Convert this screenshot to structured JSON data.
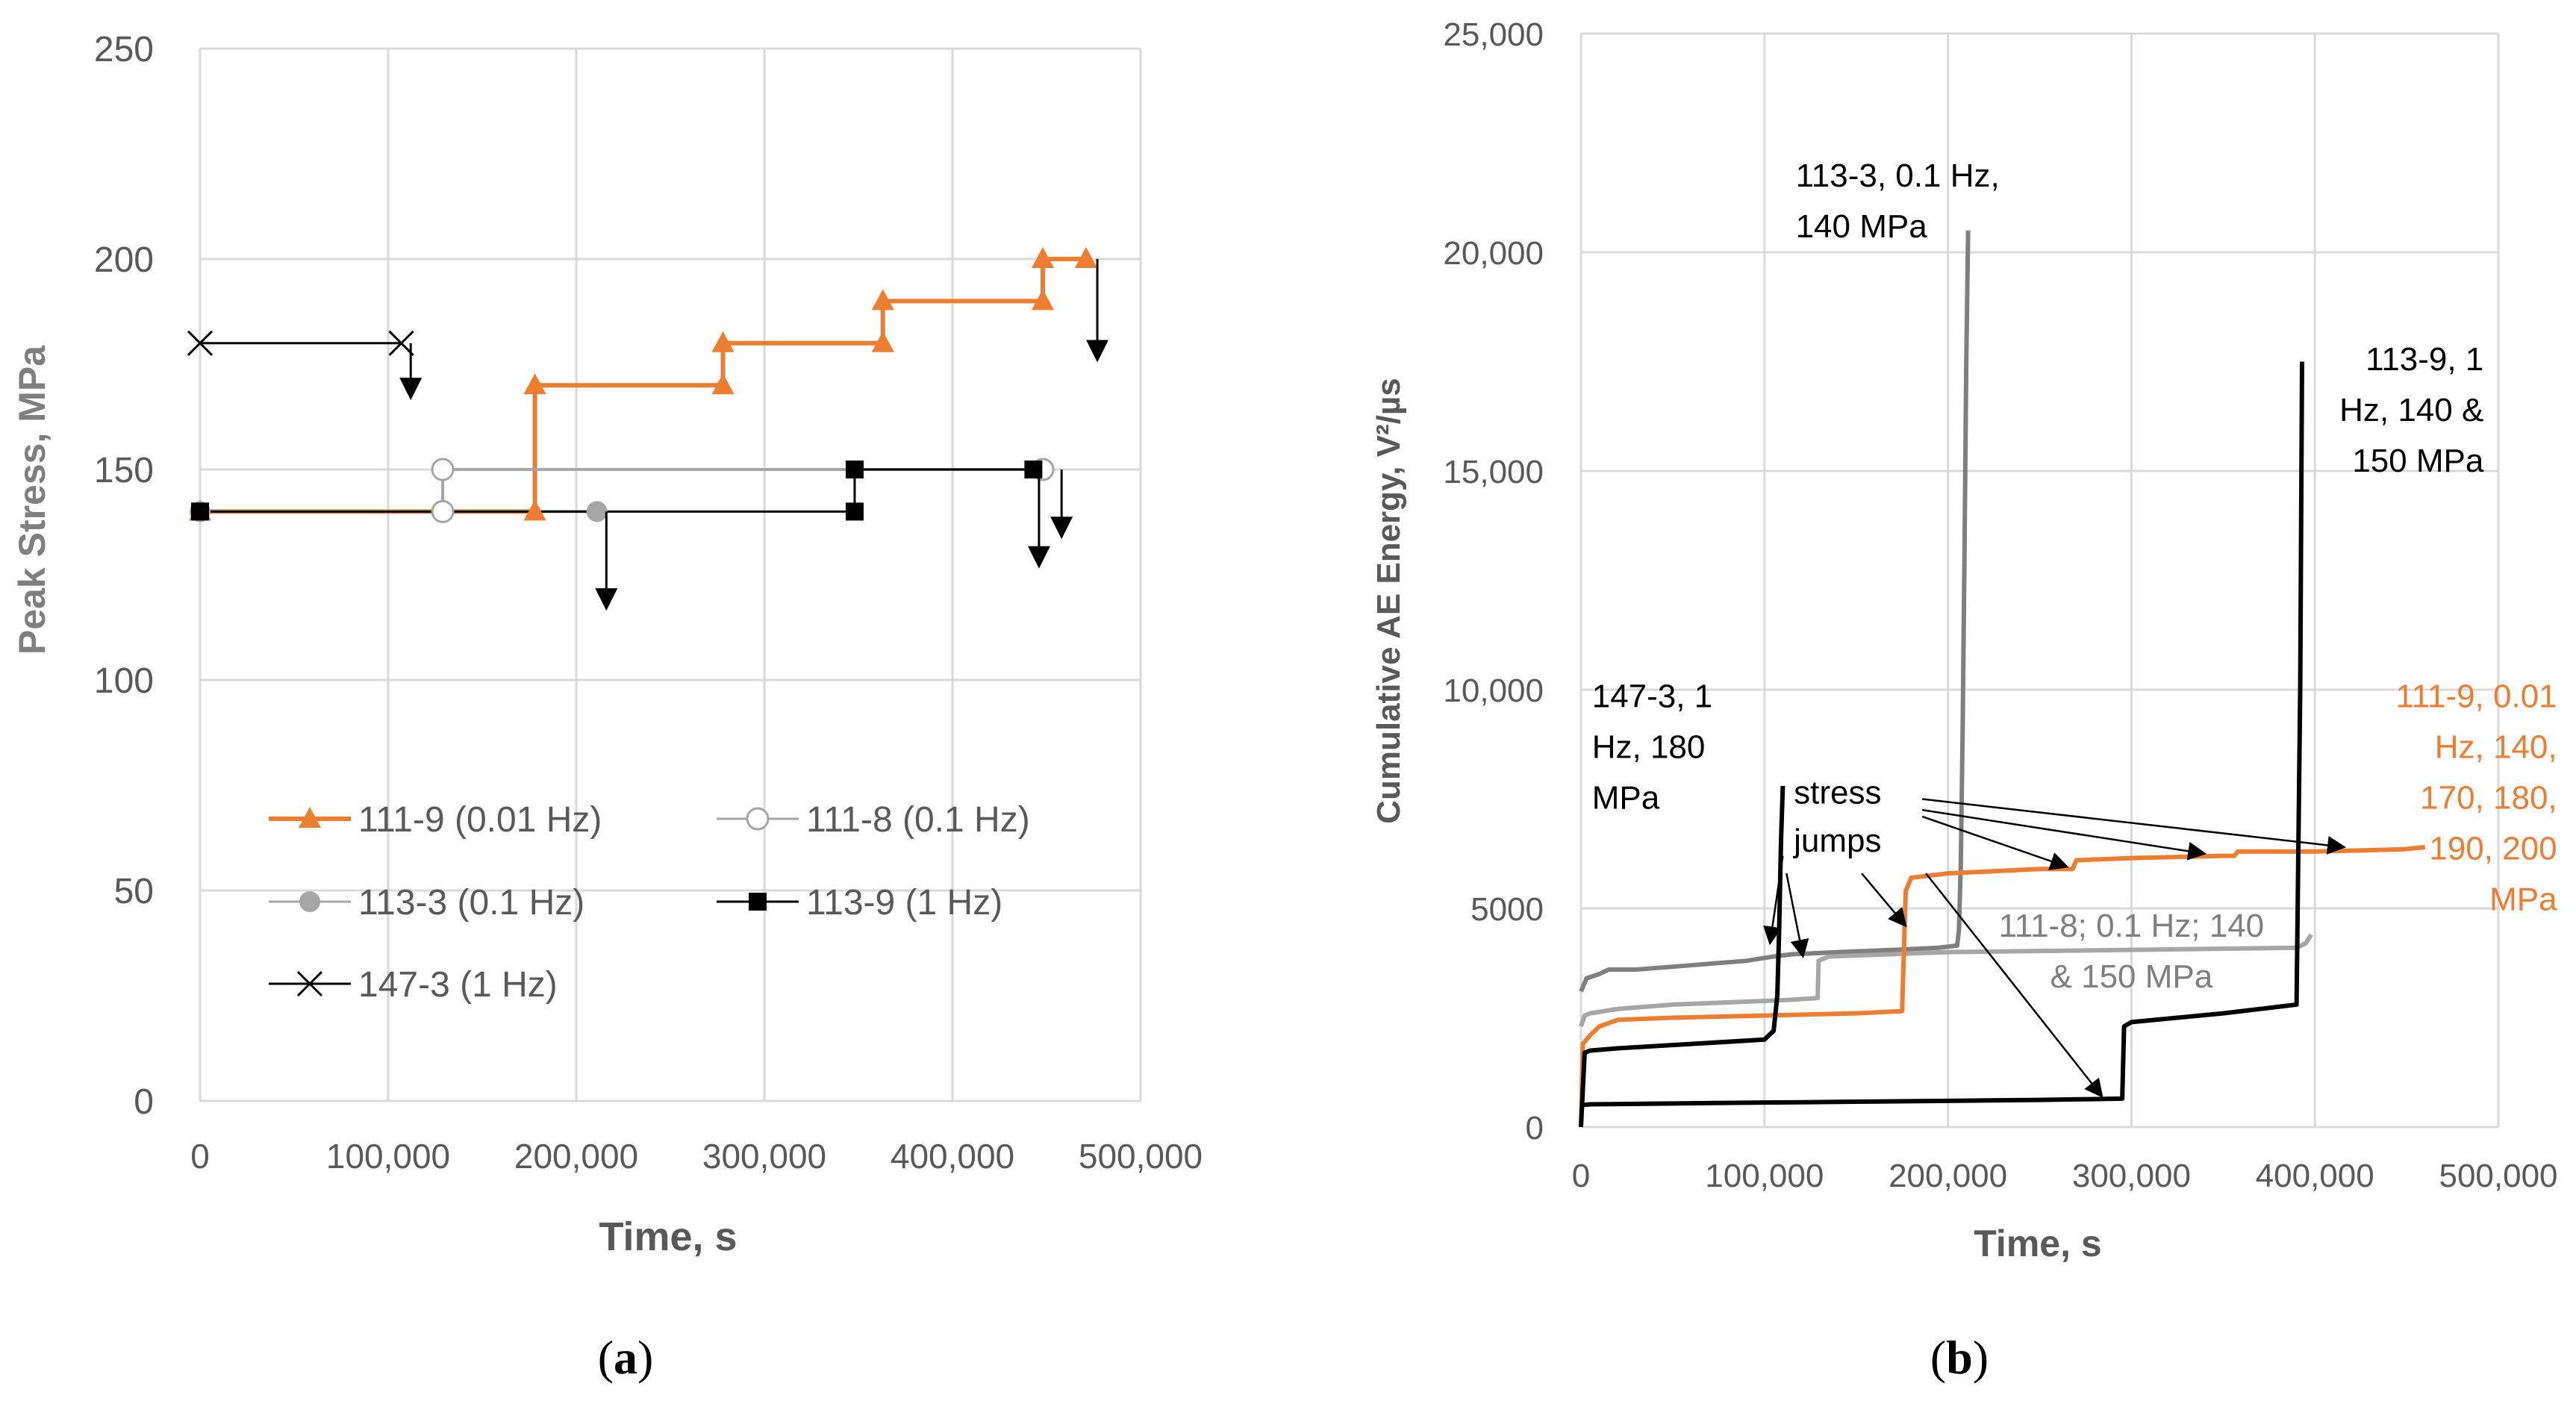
{
  "chart_data": [
    {
      "type": "line",
      "panel_label": "(a)",
      "caption": {
        "open": "(",
        "letter": "a",
        "close": ")"
      },
      "xlabel": "Time, s",
      "ylabel": "Peak Stress, MPa",
      "xlim": [
        0,
        500000
      ],
      "ylim": [
        0,
        250
      ],
      "xticks": [
        0,
        100000,
        200000,
        300000,
        400000,
        500000
      ],
      "xtick_labels": [
        "0",
        "100,000",
        "200,000",
        "300,000",
        "400,000",
        "500,000"
      ],
      "yticks": [
        0,
        50,
        100,
        150,
        200,
        250
      ],
      "ytick_labels": [
        "0",
        "50",
        "100",
        "150",
        "200",
        "250"
      ],
      "grid": true,
      "series": [
        {
          "name": "111-9 (0.01 Hz)",
          "color": "#ed7d31",
          "marker": "triangle",
          "x": [
            0,
            178000,
            178000,
            278000,
            278000,
            363000,
            363000,
            448000,
            448000,
            471000
          ],
          "y": [
            140,
            140,
            170,
            170,
            180,
            180,
            190,
            190,
            200,
            200
          ]
        },
        {
          "name": "111-8 (0.1 Hz)",
          "color": "#a6a6a6",
          "marker": "open-circle",
          "x": [
            129000,
            129000,
            448000
          ],
          "y": [
            140,
            150,
            150
          ]
        },
        {
          "name": "113-3 (0.1 Hz)",
          "color": "#a6a6a6",
          "marker": "filled-circle",
          "x": [
            0,
            211000
          ],
          "y": [
            140,
            140
          ]
        },
        {
          "name": "113-9 (1 Hz)",
          "color": "#000000",
          "marker": "square",
          "x": [
            0,
            348000,
            348000,
            443000
          ],
          "y": [
            140,
            140,
            150,
            150
          ]
        },
        {
          "name": "147-3 (1 Hz)",
          "color": "#000000",
          "marker": "x",
          "x": [
            0,
            107000
          ],
          "y": [
            180,
            180
          ]
        }
      ],
      "failure_arrows": [
        {
          "x": 112000,
          "y_from": 180,
          "y_to": 167
        },
        {
          "x": 216000,
          "y_from": 140,
          "y_to": 117
        },
        {
          "x": 446000,
          "y_from": 150,
          "y_to": 127
        },
        {
          "x": 458000,
          "y_from": 150,
          "y_to": 134
        },
        {
          "x": 477000,
          "y_from": 200,
          "y_to": 176
        }
      ]
    },
    {
      "type": "line",
      "panel_label": "(b)",
      "caption": {
        "open": "(",
        "letter": "b",
        "close": ")"
      },
      "xlabel": "Time, s",
      "ylabel": "Cumulative AE Energy, V²/µs",
      "xlim": [
        0,
        500000
      ],
      "ylim": [
        0,
        25000
      ],
      "xticks": [
        0,
        100000,
        200000,
        300000,
        400000,
        500000
      ],
      "xtick_labels": [
        "0",
        "100,000",
        "200,000",
        "300,000",
        "400,000",
        "500,000"
      ],
      "yticks": [
        0,
        5000,
        10000,
        15000,
        20000,
        25000
      ],
      "ytick_labels": [
        "0",
        "5000",
        "10,000",
        "15,000",
        "20,000",
        "25,000"
      ],
      "grid": true,
      "series": [
        {
          "name": "113-3",
          "color": "#7f7f7f",
          "x": [
            0,
            3000,
            10000,
            15000,
            30000,
            60000,
            90000,
            105000,
            115000,
            140000,
            170000,
            195000,
            205000,
            206000,
            207000,
            208000,
            209000,
            210000,
            211000
          ],
          "y": [
            3100,
            3400,
            3500,
            3600,
            3600,
            3700,
            3800,
            3900,
            3950,
            4000,
            4050,
            4100,
            4150,
            4500,
            6000,
            9000,
            13000,
            17500,
            20500
          ]
        },
        {
          "name": "111-8",
          "color": "#a6a6a6",
          "x": [
            0,
            2000,
            5000,
            20000,
            50000,
            80000,
            110000,
            129000,
            129500,
            135000,
            200000,
            300000,
            390000,
            395000,
            398000
          ],
          "y": [
            2300,
            2550,
            2600,
            2700,
            2800,
            2850,
            2900,
            2950,
            3800,
            3900,
            4000,
            4050,
            4100,
            4200,
            4400
          ]
        },
        {
          "name": "111-9",
          "color": "#ed7d31",
          "x": [
            0,
            1000,
            5000,
            10000,
            20000,
            50000,
            100000,
            150000,
            175000,
            177000,
            180000,
            200000,
            250000,
            268000,
            270000,
            300000,
            350000,
            356000,
            358000,
            400000,
            448000,
            460000
          ],
          "y": [
            0,
            1900,
            2100,
            2300,
            2450,
            2500,
            2550,
            2600,
            2650,
            5400,
            5700,
            5800,
            5900,
            5900,
            6100,
            6150,
            6200,
            6200,
            6300,
            6300,
            6350,
            6400
          ]
        },
        {
          "name": "113-9",
          "color": "#000000",
          "x": [
            0,
            5000,
            50000,
            100000,
            150000,
            200000,
            250000,
            295000,
            296000,
            300000,
            350000,
            390000,
            392000,
            393000
          ],
          "y": [
            500,
            520,
            540,
            560,
            580,
            600,
            620,
            650,
            2300,
            2400,
            2600,
            2800,
            10000,
            17500
          ]
        },
        {
          "name": "147-3",
          "color": "#000000",
          "x": [
            0,
            2000,
            5000,
            20000,
            60000,
            100000,
            105000,
            107000,
            108000,
            109000,
            110000
          ],
          "y": [
            0,
            1700,
            1750,
            1800,
            1900,
            2000,
            2200,
            3000,
            4500,
            6500,
            7800
          ]
        }
      ],
      "annotations": [
        {
          "lines": [
            "113-3, 0.1 Hz,",
            "140 MPa"
          ],
          "color": "#000000",
          "x": 117000,
          "y": 21500,
          "align": "start"
        },
        {
          "lines": [
            "113-9, 1",
            "Hz, 140 &",
            "150 MPa"
          ],
          "color": "#000000",
          "x": 492000,
          "y": 17300,
          "align": "end"
        },
        {
          "lines": [
            "147-3, 1",
            "Hz, 180",
            "MPa"
          ],
          "color": "#000000",
          "x": 6000,
          "y": 9600,
          "align": "start"
        },
        {
          "lines": [
            "111-9, 0.01",
            "Hz, 140,",
            "170, 180,",
            "190, 200",
            "MPa"
          ],
          "color": "#ed7d31",
          "x": 532000,
          "y": 9600,
          "align": "end"
        },
        {
          "lines": [
            "111-8; 0.1 Hz; 140",
            "& 150 MPa"
          ],
          "color": "#7f7f7f",
          "x": 300000,
          "y": 4350,
          "align": "middle"
        },
        {
          "lines": [
            "stress"
          ],
          "color": "#000000",
          "x": 116000,
          "y": 7400,
          "align": "start"
        },
        {
          "lines": [
            "jumps"
          ],
          "color": "#000000",
          "x": 116000,
          "y": 6300,
          "align": "start"
        }
      ],
      "annotation_arrows": [
        {
          "from": [
            110000,
            6200
          ],
          "to": [
            103000,
            4200
          ]
        },
        {
          "from": [
            112000,
            5800
          ],
          "to": [
            121000,
            3900
          ]
        },
        {
          "from": [
            153000,
            5800
          ],
          "to": [
            177000,
            4600
          ]
        },
        {
          "from": [
            188000,
            5800
          ],
          "to": [
            284000,
            700
          ]
        },
        {
          "from": [
            186000,
            7100
          ],
          "to": [
            265000,
            5950
          ]
        },
        {
          "from": [
            186000,
            7250
          ],
          "to": [
            340000,
            6250
          ]
        },
        {
          "from": [
            186000,
            7500
          ],
          "to": [
            416000,
            6400
          ]
        }
      ]
    }
  ]
}
